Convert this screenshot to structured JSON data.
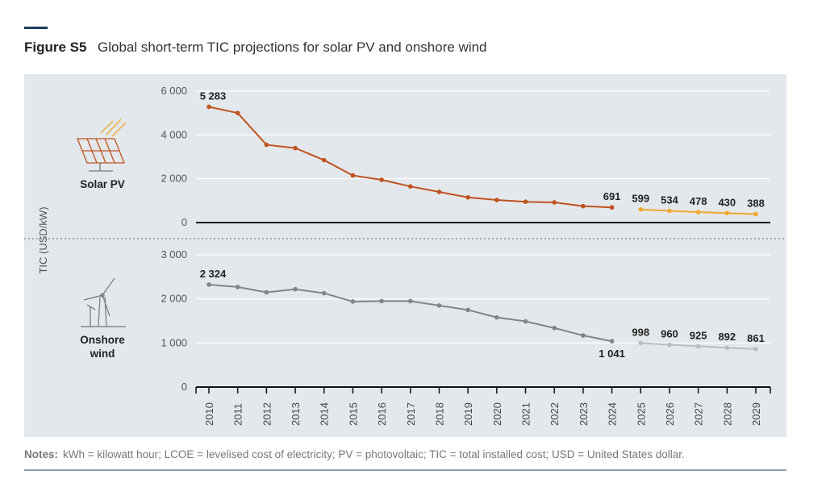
{
  "figure_label": "Figure S5",
  "title": "Global short-term TIC projections for solar PV and onshore wind",
  "y_label": "TIC (USD/kW)",
  "notes_label": "Notes:",
  "notes": "kWh = kilowatt hour; LCOE = levelised cost of electricity; PV = photovoltaic; TIC = total installed cost; USD = United States dollar.",
  "chart_data": [
    {
      "type": "line",
      "panel_label": "Solar PV",
      "ylim": [
        0,
        6000
      ],
      "yticks": [
        0,
        {
          "value": 2000,
          "label": "2 000"
        },
        {
          "value": 4000,
          "label": "4 000"
        },
        {
          "value": 6000,
          "label": "6 000"
        }
      ],
      "grid": true,
      "series": [
        {
          "color": "#c0531f",
          "values": [
            5283,
            5000,
            3550,
            3400,
            2850,
            2150,
            1950,
            1650,
            1400,
            1150,
            1030,
            950,
            920,
            750,
            691,
            null,
            null,
            null,
            null,
            null
          ],
          "value_labels": [
            "5 283",
            null,
            null,
            null,
            null,
            null,
            null,
            null,
            null,
            null,
            null,
            null,
            null,
            null,
            "691",
            null,
            null,
            null,
            null,
            null
          ]
        },
        {
          "color": "#f0a830",
          "values": [
            null,
            null,
            null,
            null,
            null,
            null,
            null,
            null,
            null,
            null,
            null,
            null,
            null,
            null,
            null,
            599,
            534,
            478,
            430,
            388
          ],
          "value_labels": [
            null,
            null,
            null,
            null,
            null,
            null,
            null,
            null,
            null,
            null,
            null,
            null,
            null,
            null,
            null,
            "599",
            "534",
            "478",
            "430",
            "388"
          ]
        }
      ]
    },
    {
      "type": "line",
      "panel_label": "Onshore\nwind",
      "categories": [
        "2010",
        "2011",
        "2012",
        "2013",
        "2014",
        "2015",
        "2016",
        "2017",
        "2018",
        "2019",
        "2020",
        "2021",
        "2022",
        "2023",
        "2024",
        "2025",
        "2026",
        "2027",
        "2028",
        "2029"
      ],
      "ylim": [
        0,
        3000
      ],
      "yticks": [
        0,
        {
          "value": 1000,
          "label": "1 000"
        },
        {
          "value": 2000,
          "label": "2 000"
        },
        {
          "value": 3000,
          "label": "3 000"
        }
      ],
      "grid": true,
      "series": [
        {
          "color": "#7d8785",
          "values": [
            2324,
            2270,
            2150,
            2220,
            2130,
            1940,
            1950,
            1950,
            1850,
            1750,
            1580,
            1490,
            1340,
            1170,
            1041,
            null,
            null,
            null,
            null,
            null
          ],
          "value_labels": [
            "2 324",
            null,
            null,
            null,
            null,
            null,
            null,
            null,
            null,
            null,
            null,
            null,
            null,
            null,
            "1 041",
            null,
            null,
            null,
            null,
            null
          ]
        },
        {
          "color": "#b8bdb9",
          "values": [
            null,
            null,
            null,
            null,
            null,
            null,
            null,
            null,
            null,
            null,
            null,
            null,
            null,
            null,
            null,
            998,
            960,
            925,
            892,
            861
          ],
          "value_labels": [
            null,
            null,
            null,
            null,
            null,
            null,
            null,
            null,
            null,
            null,
            null,
            null,
            null,
            null,
            null,
            "998",
            "960",
            "925",
            "892",
            "861"
          ]
        }
      ]
    }
  ]
}
